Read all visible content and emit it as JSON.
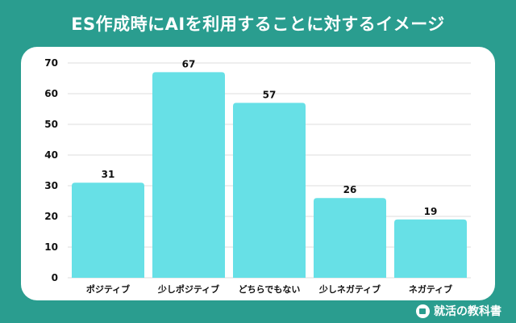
{
  "title": "ES作成時にAIを利用することに対するイメージ",
  "brand": "就活の教科書",
  "colors": {
    "background": "#2a9d8f",
    "bar": "#67e0e6",
    "grid": "#dddddd",
    "text": "#111111"
  },
  "chart_data": {
    "type": "bar",
    "title": "ES作成時にAIを利用することに対するイメージ",
    "xlabel": "",
    "ylabel": "",
    "categories": [
      "ポジティブ",
      "少しポジティブ",
      "どちらでもない",
      "少しネガティブ",
      "ネガティブ"
    ],
    "values": [
      31,
      67,
      57,
      26,
      19
    ],
    "ylim": [
      0,
      70
    ],
    "yticks": [
      0,
      10,
      20,
      30,
      40,
      50,
      60,
      70
    ],
    "grid": true,
    "data_labels": true
  }
}
